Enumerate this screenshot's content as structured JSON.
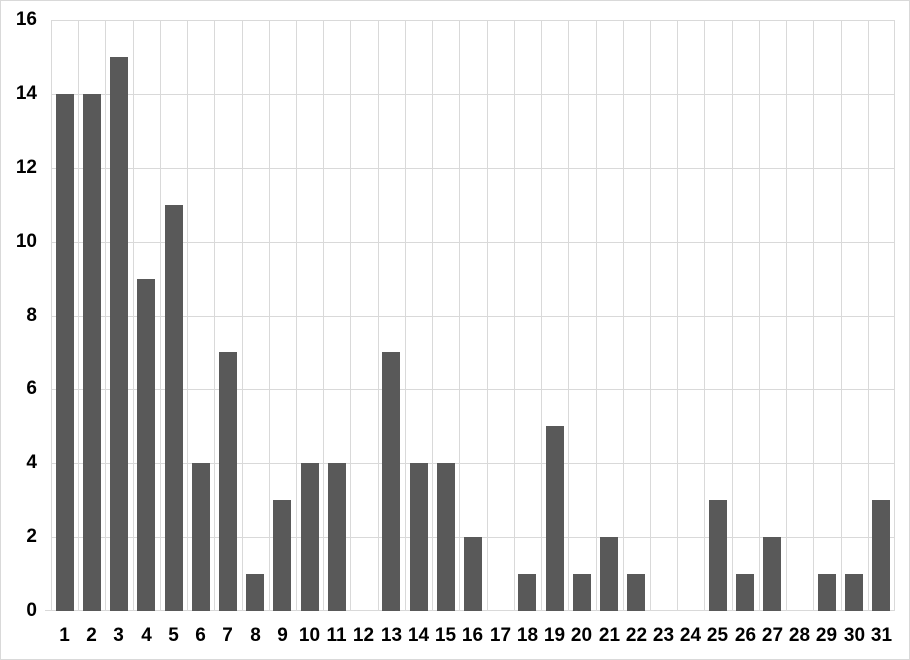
{
  "chart_data": {
    "type": "bar",
    "title": "",
    "xlabel": "",
    "ylabel": "",
    "categories": [
      "1",
      "2",
      "3",
      "4",
      "5",
      "6",
      "7",
      "8",
      "9",
      "10",
      "11",
      "12",
      "13",
      "14",
      "15",
      "16",
      "17",
      "18",
      "19",
      "20",
      "21",
      "22",
      "23",
      "24",
      "25",
      "26",
      "27",
      "28",
      "29",
      "30",
      "31"
    ],
    "values": [
      14,
      14,
      15,
      9,
      11,
      4,
      7,
      1,
      3,
      4,
      4,
      0,
      7,
      4,
      4,
      2,
      0,
      1,
      5,
      1,
      2,
      1,
      0,
      0,
      3,
      1,
      2,
      0,
      1,
      1,
      3
    ],
    "ylim": [
      0,
      16
    ],
    "yticks": [
      0,
      2,
      4,
      6,
      8,
      10,
      12,
      14,
      16
    ],
    "legend": "none",
    "grid": "horizontal-and-vertical",
    "colors": {
      "bar": "#595959",
      "gridline": "#d9d9d9",
      "axis_line": "#d9d9d9",
      "label_text": "#000000",
      "background": "#ffffff",
      "chart_border": "#d9d9d9"
    }
  }
}
